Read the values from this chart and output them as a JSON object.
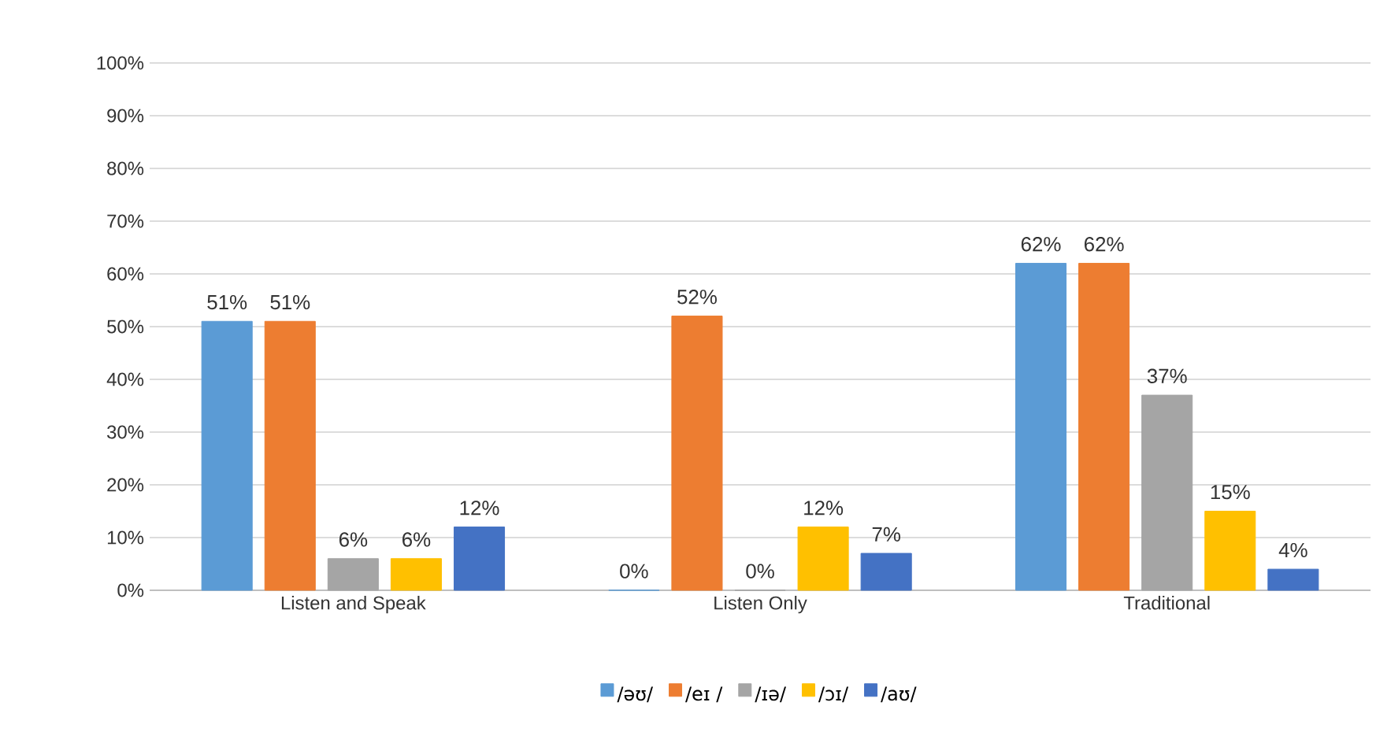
{
  "chart_data": {
    "type": "bar",
    "categories": [
      "Listen and Speak",
      "Listen Only",
      "Traditional"
    ],
    "series": [
      {
        "name": "/əʊ/",
        "color": "#5b9bd5",
        "values": [
          51,
          0,
          62
        ],
        "value_labels": [
          "51%",
          "0%",
          "62%"
        ]
      },
      {
        "name": "/eɪ /",
        "color": "#ed7d31",
        "values": [
          51,
          52,
          62
        ],
        "value_labels": [
          "51%",
          "52%",
          "62%"
        ]
      },
      {
        "name": "/ɪə/",
        "color": "#a5a5a5",
        "values": [
          6,
          0,
          37
        ],
        "value_labels": [
          "6%",
          "0%",
          "37%"
        ]
      },
      {
        "name": "/ɔɪ/",
        "color": "#ffc000",
        "values": [
          6,
          12,
          15
        ],
        "value_labels": [
          "6%",
          "12%",
          "15%"
        ]
      },
      {
        "name": "/aʊ/",
        "color": "#4472c4",
        "values": [
          12,
          7,
          4
        ],
        "value_labels": [
          "12%",
          "7%",
          "4%"
        ]
      }
    ],
    "ylim": [
      0,
      100
    ],
    "yticks": [
      {
        "value": 0,
        "label": "0%"
      },
      {
        "value": 10,
        "label": "10%"
      },
      {
        "value": 20,
        "label": "20%"
      },
      {
        "value": 30,
        "label": "30%"
      },
      {
        "value": 40,
        "label": "40%"
      },
      {
        "value": 50,
        "label": "50%"
      },
      {
        "value": 60,
        "label": "60%"
      },
      {
        "value": 70,
        "label": "70%"
      },
      {
        "value": 80,
        "label": "80%"
      },
      {
        "value": 90,
        "label": "90%"
      },
      {
        "value": 100,
        "label": "100%"
      }
    ],
    "grid": "y",
    "legend": "bottom"
  }
}
